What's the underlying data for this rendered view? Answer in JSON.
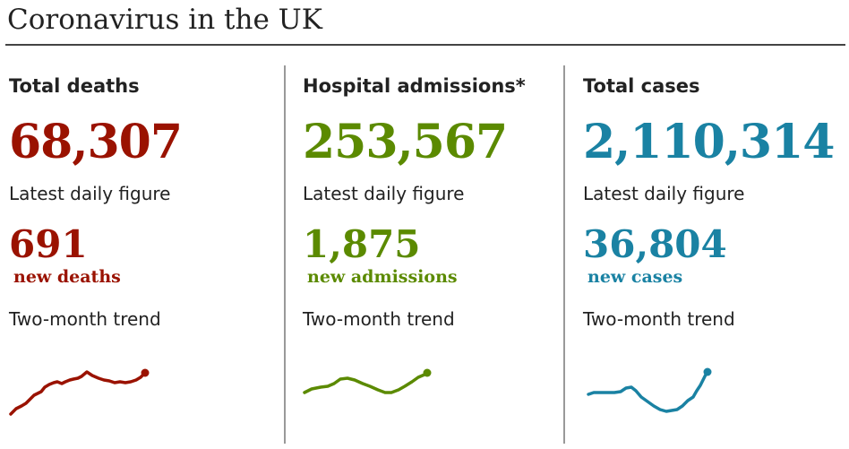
{
  "title": "Coronavirus in the UK",
  "colors": {
    "deaths": "#9a1200",
    "admissions": "#5b8a00",
    "cases": "#1a82a3"
  },
  "chart_data": {
    "type": "table",
    "title": "Coronavirus in the UK",
    "columns": [
      {
        "heading": "Total deaths",
        "total": "68,307",
        "daily_label": "Latest daily figure",
        "daily": "691",
        "unit": "new deaths",
        "trend_label": "Two-month trend"
      },
      {
        "heading": "Hospital admissions*",
        "total": "253,567",
        "daily_label": "Latest daily figure",
        "daily": "1,875",
        "unit": "new admissions",
        "trend_label": "Two-month trend"
      },
      {
        "heading": "Total cases",
        "total": "2,110,314",
        "daily_label": "Latest daily figure",
        "daily": "36,804",
        "unit": "new cases",
        "trend_label": "Two-month trend"
      }
    ]
  }
}
